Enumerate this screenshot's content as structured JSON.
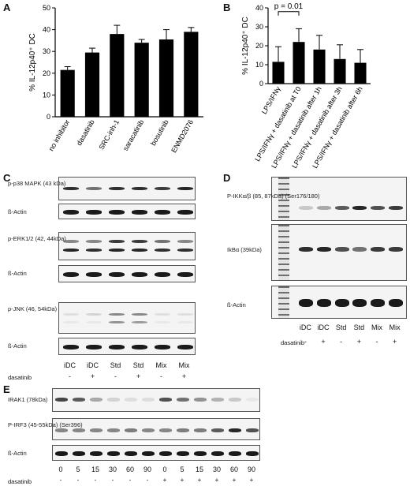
{
  "panels": {
    "A": "A",
    "B": "B",
    "C": "C",
    "D": "D",
    "E": "E"
  },
  "chart_data": [
    {
      "panel": "A",
      "type": "bar",
      "ylabel": "% IL-12p40⁺ DC",
      "ylim": [
        0,
        50
      ],
      "yticks": [
        0,
        10,
        20,
        30,
        40,
        50
      ],
      "categories": [
        "no inhibitor",
        "dasatinib",
        "SRC-inh-1",
        "saracatinib",
        "bosutinib",
        "ENMD2076"
      ],
      "values": [
        21.5,
        29.5,
        38,
        34,
        35.5,
        39
      ],
      "errors": [
        1.5,
        2,
        4,
        1.5,
        4.5,
        2
      ]
    },
    {
      "panel": "B",
      "type": "bar",
      "ylabel": "% IL-12p40⁺ DC",
      "ylim": [
        0,
        40
      ],
      "yticks": [
        0,
        10,
        20,
        30,
        40
      ],
      "categories": [
        "LPS/IFNγ",
        "LPS/IFNγ + dasatinib at T0",
        "LPS/IFNγ + dasatinib after 1h",
        "LPS/IFNγ + dasatinib after 3h",
        "LPS/IFNγ + dasatinib after 6h"
      ],
      "values": [
        11.5,
        22,
        18,
        13,
        11
      ],
      "errors": [
        8,
        7,
        7.5,
        7.5,
        7
      ],
      "annotation": "p = 0.01"
    }
  ],
  "panelC": {
    "rows": [
      "p-p38 MAPK\n(43 kDa)",
      "ß-Actin",
      "p-ERK1/2\n(42, 44kDa)",
      "ß-Actin",
      "p-JNK\n(46, 54kDa)",
      "ß-Actin"
    ],
    "lanes": [
      "iDC",
      "iDC",
      "Std",
      "Std",
      "Mix",
      "Mix"
    ],
    "signs": [
      "-",
      "+",
      "-",
      "+",
      "-",
      "+"
    ],
    "row_label": "dasatinib"
  },
  "panelD": {
    "rows": [
      "P-IKKα/β (85, 87kDa)\n(Ser176/180)",
      "IkBα (39kDa)",
      "ß-Actin"
    ],
    "lanes": [
      "iDC",
      "iDC",
      "Std",
      "Std",
      "Mix",
      "Mix"
    ],
    "signs": [
      "-",
      "+",
      "-",
      "+",
      "-",
      "+"
    ],
    "row_label": "dasatinib"
  },
  "panelE": {
    "rows": [
      "IRAK1 (78kDa)",
      "P-IRF3 (45-55kDa)\n(Ser396)",
      "ß-Actin"
    ],
    "times": [
      "0",
      "5",
      "15",
      "30",
      "60",
      "90",
      "0",
      "5",
      "15",
      "30",
      "60",
      "90"
    ],
    "signs": [
      "-",
      "-",
      "-",
      "-",
      "-",
      "-",
      "+",
      "+",
      "+",
      "+",
      "+",
      "+"
    ],
    "row_label": "dasatinib"
  }
}
